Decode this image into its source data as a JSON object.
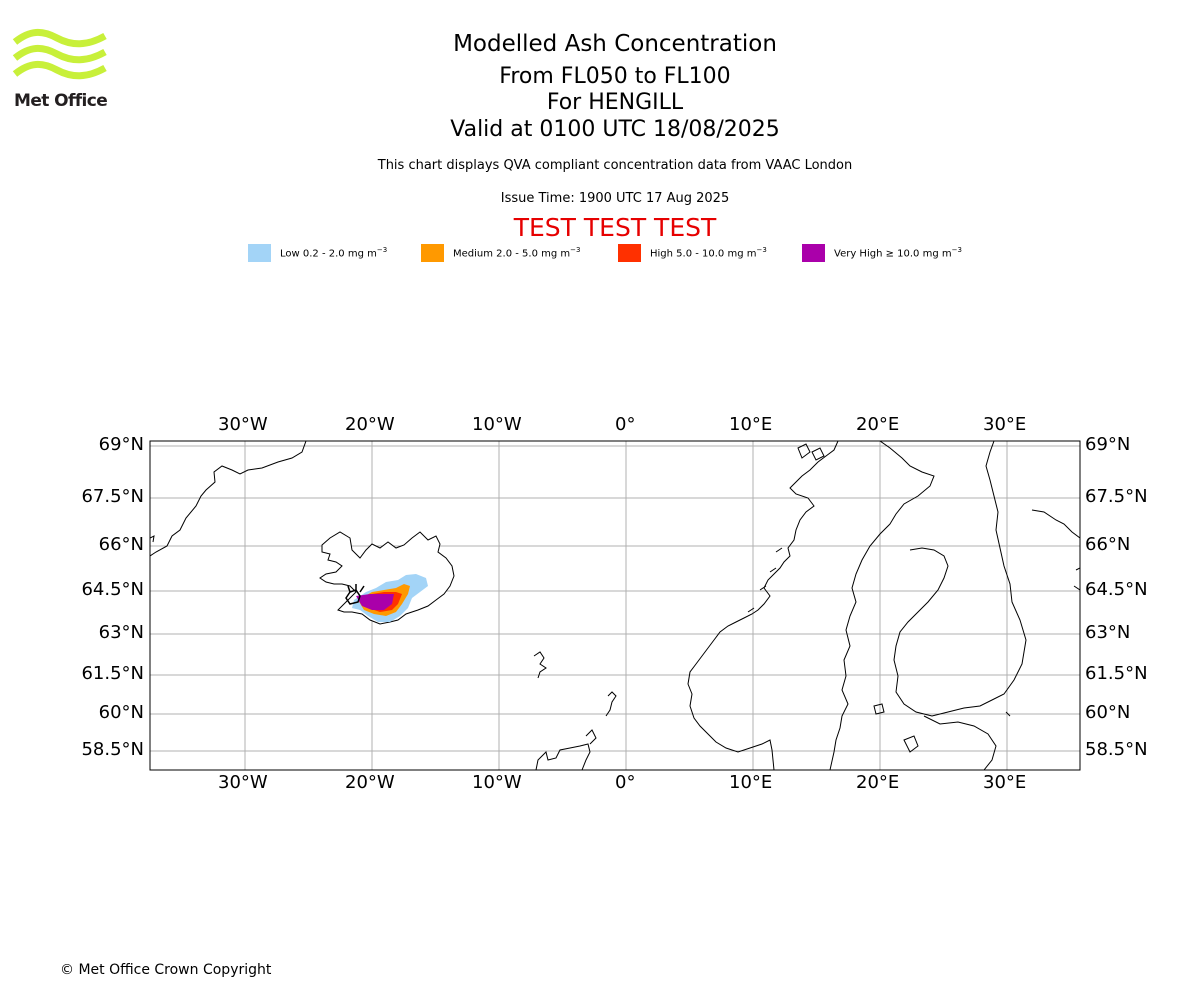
{
  "logo": {
    "name": "Met Office",
    "color": "#c8f03a"
  },
  "header": {
    "title": "Modelled Ash Concentration",
    "level_range": "From FL050 to FL100",
    "location": "For HENGILL",
    "valid_time": "Valid at 0100 UTC 18/08/2025",
    "compliance_note": "This chart displays QVA compliant concentration data from VAAC London",
    "issue_time": "Issue Time: 1900 UTC 17 Aug 2025",
    "test_banner": "TEST TEST TEST",
    "test_banner_color": "#e60000"
  },
  "legend": [
    {
      "label": "Low 0.2 - 2.0 mg m",
      "unit_exponent": "−3",
      "color": "#a3d4f7"
    },
    {
      "label": "Medium 2.0 - 5.0 mg m",
      "unit_exponent": "−3",
      "color": "#ff9900"
    },
    {
      "label": "High 5.0 - 10.0 mg m",
      "unit_exponent": "−3",
      "color": "#ff3000"
    },
    {
      "label": "Very High  ≥  10.0 mg m",
      "unit_exponent": "−3",
      "color": "#aa00aa"
    }
  ],
  "map": {
    "longitude_ticks": [
      "30°W",
      "20°W",
      "10°W",
      "0°",
      "10°E",
      "20°E",
      "30°E"
    ],
    "latitude_ticks": [
      "69°N",
      "67.5°N",
      "66°N",
      "64.5°N",
      "63°N",
      "61.5°N",
      "60°N",
      "58.5°N"
    ],
    "gridline_color": "#b0b0b0",
    "coastline_color": "#000000"
  },
  "footer": {
    "copyright": "© Met Office Crown Copyright"
  }
}
